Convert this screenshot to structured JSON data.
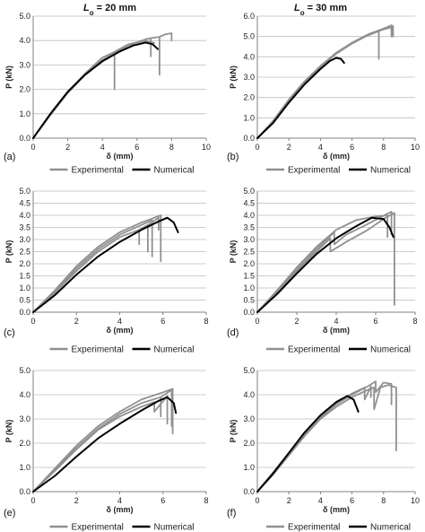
{
  "column_titles": [
    {
      "symbol": "L",
      "subscript": "o",
      "rest": " = 20 mm"
    },
    {
      "symbol": "L",
      "subscript": "o",
      "rest": " = 30 mm"
    }
  ],
  "colors": {
    "experimental": "#909090",
    "numerical": "#000000",
    "grid": "#bdbdbd",
    "axis": "#808080"
  },
  "chart_data": [
    {
      "panel": "(a)",
      "type": "line",
      "xlabel": "δ (mm)",
      "ylabel": "P (kN)",
      "xlim": [
        0,
        10
      ],
      "ylim": [
        0,
        5
      ],
      "xticks": [
        0,
        2,
        4,
        6,
        8,
        10
      ],
      "yticks": [
        "0.0",
        "1.0",
        "2.0",
        "3.0",
        "4.0",
        "5.0"
      ],
      "grid": "horizontal",
      "legend": "bottom",
      "series": [
        {
          "name": "Experimental",
          "kind": "experimental",
          "x": [
            0,
            1,
            2,
            3,
            4,
            4.7,
            4.7,
            4.7,
            5.5,
            6.5,
            6.8,
            6.8,
            6.8,
            7.3,
            7.3,
            7.3,
            7.6,
            8.0,
            8.0
          ],
          "y": [
            0,
            0.95,
            1.85,
            2.6,
            3.2,
            3.5,
            2.0,
            3.5,
            3.8,
            4.05,
            4.1,
            3.35,
            4.1,
            4.15,
            2.6,
            4.15,
            4.25,
            4.3,
            4.0
          ]
        },
        {
          "name": "Experimental",
          "kind": "experimental",
          "x": [
            0,
            1,
            2,
            3,
            4,
            4.6,
            5.5,
            6.5,
            7.0
          ],
          "y": [
            0,
            1.0,
            1.9,
            2.65,
            3.3,
            3.5,
            3.85,
            4.0,
            3.9
          ]
        },
        {
          "name": "Numerical",
          "kind": "numerical",
          "x": [
            0,
            1,
            2,
            3,
            4,
            5,
            5.8,
            6.5,
            6.9,
            7.2
          ],
          "y": [
            0,
            1.0,
            1.9,
            2.6,
            3.15,
            3.55,
            3.8,
            3.92,
            3.85,
            3.65
          ]
        }
      ]
    },
    {
      "panel": "(b)",
      "type": "line",
      "xlabel": "δ (mm)",
      "ylabel": "P (kN)",
      "xlim": [
        0,
        10
      ],
      "ylim": [
        0,
        6
      ],
      "xticks": [
        0,
        2,
        4,
        6,
        8,
        10
      ],
      "yticks": [
        "0.0",
        "1.0",
        "2.0",
        "3.0",
        "4.0",
        "5.0",
        "6.0"
      ],
      "grid": "horizontal",
      "legend": "bottom",
      "series": [
        {
          "name": "Experimental",
          "kind": "experimental",
          "x": [
            0,
            1,
            2,
            3,
            4,
            5,
            6,
            7,
            7.7,
            7.7,
            7.7,
            8.2,
            8.5,
            8.5,
            8.5,
            8.6,
            8.6
          ],
          "y": [
            0,
            0.85,
            1.9,
            2.8,
            3.55,
            4.2,
            4.7,
            5.1,
            5.3,
            3.9,
            5.3,
            5.45,
            5.55,
            5.0,
            5.55,
            5.5,
            5.0
          ]
        },
        {
          "name": "Experimental",
          "kind": "experimental",
          "x": [
            0,
            1,
            2,
            3,
            4,
            5,
            6,
            7,
            8,
            8.5
          ],
          "y": [
            0,
            0.8,
            1.85,
            2.75,
            3.5,
            4.15,
            4.65,
            5.05,
            5.35,
            5.45
          ]
        },
        {
          "name": "Numerical",
          "kind": "numerical",
          "x": [
            0,
            1,
            2,
            3,
            4,
            4.6,
            5.0,
            5.3,
            5.5
          ],
          "y": [
            0,
            0.75,
            1.75,
            2.65,
            3.4,
            3.8,
            3.95,
            3.9,
            3.7
          ]
        }
      ]
    },
    {
      "panel": "(c)",
      "type": "line",
      "xlabel": "δ (mm)",
      "ylabel": "P (kN)",
      "xlim": [
        0,
        8
      ],
      "ylim": [
        0,
        5
      ],
      "xticks": [
        0,
        2,
        4,
        6,
        8
      ],
      "yticks": [
        "0.0",
        "0.5",
        "1.0",
        "1.5",
        "2.0",
        "2.5",
        "3.0",
        "3.5",
        "4.0",
        "4.5",
        "5.0"
      ],
      "grid": "horizontal",
      "legend": "bottom",
      "series": [
        {
          "name": "Experimental",
          "kind": "experimental",
          "x": [
            0,
            1,
            2,
            3,
            4,
            4.9,
            4.9,
            4.9,
            5.3,
            5.3,
            5.3,
            5.8,
            5.8
          ],
          "y": [
            0,
            0.8,
            1.7,
            2.5,
            3.1,
            3.4,
            2.8,
            3.4,
            3.6,
            2.5,
            3.6,
            3.9,
            3.4
          ]
        },
        {
          "name": "Experimental",
          "kind": "experimental",
          "x": [
            0,
            1,
            2,
            3,
            4,
            5,
            5.6,
            5.9,
            5.9
          ],
          "y": [
            0,
            0.9,
            1.9,
            2.7,
            3.3,
            3.7,
            3.9,
            4.0,
            2.1
          ]
        },
        {
          "name": "Experimental",
          "kind": "experimental",
          "x": [
            0,
            1,
            2,
            3,
            4,
            5,
            5.5,
            5.5
          ],
          "y": [
            0,
            0.85,
            1.8,
            2.6,
            3.2,
            3.6,
            3.8,
            2.3
          ]
        },
        {
          "name": "Numerical",
          "kind": "numerical",
          "x": [
            0,
            1,
            2,
            3,
            4,
            5,
            5.8,
            6.2,
            6.5,
            6.7
          ],
          "y": [
            0,
            0.7,
            1.55,
            2.3,
            2.9,
            3.4,
            3.75,
            3.9,
            3.7,
            3.3
          ]
        }
      ]
    },
    {
      "panel": "(d)",
      "type": "line",
      "xlabel": "δ (mm)",
      "ylabel": "P (kN)",
      "xlim": [
        0,
        8
      ],
      "ylim": [
        0,
        5
      ],
      "xticks": [
        0,
        2,
        4,
        6,
        8
      ],
      "yticks": [
        "0.0",
        "0.5",
        "1.0",
        "1.5",
        "2.0",
        "2.5",
        "3.0",
        "3.5",
        "4.0",
        "4.5",
        "5.0"
      ],
      "grid": "horizontal",
      "legend": "bottom",
      "series": [
        {
          "name": "Experimental",
          "kind": "experimental",
          "x": [
            0,
            1,
            2,
            3,
            3.7,
            3.7,
            4.5,
            5.5,
            6.5,
            6.95,
            6.95
          ],
          "y": [
            0,
            0.8,
            1.7,
            2.5,
            3.05,
            2.5,
            2.9,
            3.35,
            3.9,
            4.1,
            0.3
          ]
        },
        {
          "name": "Experimental",
          "kind": "experimental",
          "x": [
            0,
            1,
            2,
            3,
            3.9,
            3.9,
            4.5,
            5.5,
            6.2,
            6.8,
            6.8
          ],
          "y": [
            0,
            0.85,
            1.75,
            2.6,
            3.3,
            2.8,
            3.2,
            3.6,
            3.9,
            4.15,
            3.2
          ]
        },
        {
          "name": "Experimental",
          "kind": "experimental",
          "x": [
            0,
            1,
            2,
            3,
            4,
            5,
            6,
            6.6,
            6.6
          ],
          "y": [
            0,
            0.9,
            1.85,
            2.7,
            3.4,
            3.8,
            3.95,
            4.0,
            3.1
          ]
        },
        {
          "name": "Numerical",
          "kind": "numerical",
          "x": [
            0,
            1,
            2,
            3,
            4,
            5,
            5.8,
            6.4,
            6.7,
            6.9
          ],
          "y": [
            0,
            0.75,
            1.6,
            2.4,
            3.05,
            3.55,
            3.9,
            3.85,
            3.5,
            3.1
          ]
        }
      ]
    },
    {
      "panel": "(e)",
      "type": "line",
      "xlabel": "δ (mm)",
      "ylabel": "P (kN)",
      "xlim": [
        0,
        8
      ],
      "ylim": [
        0,
        5
      ],
      "xticks": [
        0,
        2,
        4,
        6,
        8
      ],
      "yticks": [
        "0.0",
        "1.0",
        "2.0",
        "3.0",
        "4.0",
        "5.0"
      ],
      "grid": "horizontal",
      "legend": "bottom",
      "series": [
        {
          "name": "Experimental",
          "kind": "experimental",
          "x": [
            0,
            1,
            2,
            3,
            4,
            5,
            5.9,
            5.9,
            5.9,
            6.4,
            6.4
          ],
          "y": [
            0,
            0.9,
            1.8,
            2.6,
            3.2,
            3.65,
            3.9,
            3.1,
            3.9,
            4.2,
            2.7
          ]
        },
        {
          "name": "Experimental",
          "kind": "experimental",
          "x": [
            0,
            1,
            2,
            3,
            4,
            5,
            6,
            6.45,
            6.45
          ],
          "y": [
            0,
            0.95,
            1.9,
            2.7,
            3.3,
            3.8,
            4.1,
            4.25,
            2.4
          ]
        },
        {
          "name": "Experimental",
          "kind": "experimental",
          "x": [
            0,
            1,
            2,
            3,
            4,
            5,
            5.6,
            5.6,
            6.2,
            6.2
          ],
          "y": [
            0,
            0.85,
            1.75,
            2.55,
            3.1,
            3.5,
            3.7,
            3.3,
            3.95,
            2.8
          ]
        },
        {
          "name": "Numerical",
          "kind": "numerical",
          "x": [
            0,
            1,
            2,
            3,
            4,
            5,
            5.8,
            6.2,
            6.5,
            6.6
          ],
          "y": [
            0,
            0.65,
            1.45,
            2.2,
            2.8,
            3.35,
            3.75,
            3.9,
            3.65,
            3.25
          ]
        }
      ]
    },
    {
      "panel": "(f)",
      "type": "line",
      "xlabel": "δ (mm)",
      "ylabel": "P (kN)",
      "xlim": [
        0,
        10
      ],
      "ylim": [
        0,
        5
      ],
      "xticks": [
        0,
        2,
        4,
        6,
        8,
        10
      ],
      "yticks": [
        "0.0",
        "1.0",
        "2.0",
        "3.0",
        "4.0",
        "5.0"
      ],
      "grid": "horizontal",
      "legend": "bottom",
      "series": [
        {
          "name": "Experimental",
          "kind": "experimental",
          "x": [
            0,
            1,
            2,
            3,
            4,
            5,
            6,
            7,
            7.4,
            7.4,
            7.8,
            8.3,
            8.8,
            8.8
          ],
          "y": [
            0,
            0.7,
            1.5,
            2.3,
            3.0,
            3.5,
            3.9,
            4.2,
            4.3,
            3.4,
            4.3,
            4.4,
            4.3,
            1.7
          ]
        },
        {
          "name": "Experimental",
          "kind": "experimental",
          "x": [
            0,
            1,
            2,
            3,
            4,
            5,
            6,
            7,
            7.5,
            7.5,
            8.0,
            8.5,
            8.5
          ],
          "y": [
            0,
            0.75,
            1.55,
            2.35,
            3.05,
            3.6,
            4.0,
            4.35,
            4.55,
            4.1,
            4.5,
            4.45,
            3.6
          ]
        },
        {
          "name": "Experimental",
          "kind": "experimental",
          "x": [
            0,
            1,
            2,
            3,
            4,
            5,
            6,
            6.8,
            6.8,
            7.2,
            7.2
          ],
          "y": [
            0,
            0.8,
            1.6,
            2.4,
            3.1,
            3.65,
            4.05,
            4.3,
            3.8,
            4.35,
            3.9
          ]
        },
        {
          "name": "Numerical",
          "kind": "numerical",
          "x": [
            0,
            1,
            2,
            3,
            4,
            5,
            5.7,
            6.1,
            6.4
          ],
          "y": [
            0,
            0.75,
            1.6,
            2.45,
            3.15,
            3.7,
            3.95,
            3.8,
            3.3
          ]
        }
      ]
    }
  ]
}
